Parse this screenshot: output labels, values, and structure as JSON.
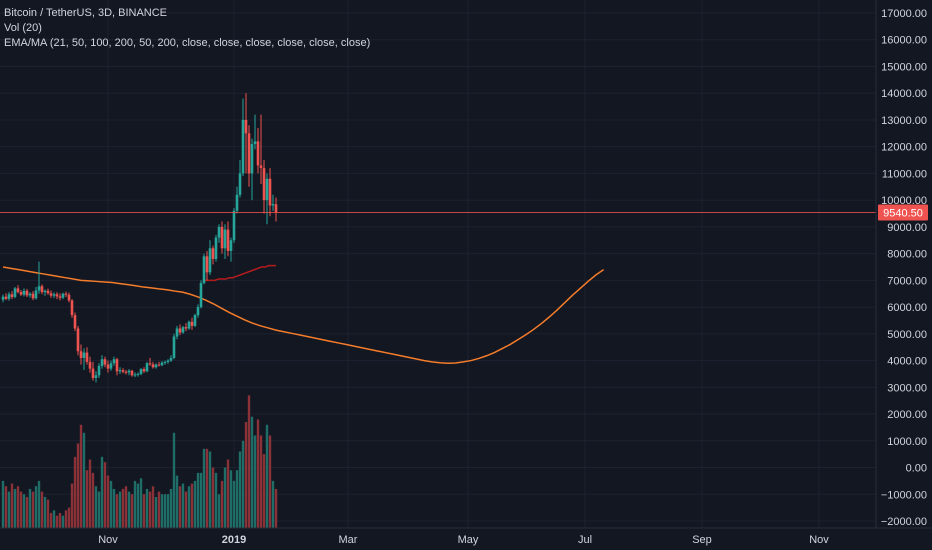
{
  "legend": {
    "line1": "Bitcoin / TetherUS, 3D, BINANCE",
    "line2": "Vol (20)",
    "line3": "EMA/MA (21, 50, 100, 200, 50, 200, close, close, close, close, close, close)"
  },
  "colors": {
    "background": "#131722",
    "grid": "#1e2230",
    "up": "#26a69a",
    "down": "#ef5350",
    "up_vol": "#1f6d67",
    "down_vol": "#8a3237",
    "ema_long": "#b71c1c",
    "ma_orange": "#f57c2a",
    "price_line": "#ef5350",
    "text": "#d1d4dc"
  },
  "chart_data": {
    "type": "candlestick",
    "y_ticks": [
      "17000.00",
      "16000.00",
      "15000.00",
      "14000.00",
      "13000.00",
      "12000.00",
      "11000.00",
      "10000.00",
      "9000.00",
      "8000.00",
      "7000.00",
      "6000.00",
      "5000.00",
      "4000.00",
      "3000.00",
      "2000.00",
      "1000.00",
      "0.00",
      "−1000.00",
      "−2000.00"
    ],
    "y_tick_values": [
      17000,
      16000,
      15000,
      14000,
      13000,
      12000,
      11000,
      10000,
      9000,
      8000,
      7000,
      6000,
      5000,
      4000,
      3000,
      2000,
      1000,
      0,
      -1000,
      -2000
    ],
    "ylim": [
      -2000,
      17000
    ],
    "x_ticks": [
      "Nov",
      "2019",
      "Mar",
      "May",
      "Jul",
      "Sep",
      "Nov"
    ],
    "x_tick_bold": [
      false,
      true,
      false,
      false,
      false,
      false,
      false
    ],
    "x_tick_candle_index": [
      35,
      77,
      115,
      155,
      194,
      233,
      272
    ],
    "last_price": "9540.50",
    "last_price_value": 9540.5,
    "candles": [
      {
        "o": 6280,
        "h": 6470,
        "l": 6180,
        "c": 6390
      },
      {
        "o": 6390,
        "h": 6520,
        "l": 6260,
        "c": 6310
      },
      {
        "o": 6310,
        "h": 6560,
        "l": 6240,
        "c": 6480
      },
      {
        "o": 6480,
        "h": 6600,
        "l": 6300,
        "c": 6380
      },
      {
        "o": 6380,
        "h": 6750,
        "l": 6330,
        "c": 6700
      },
      {
        "o": 6700,
        "h": 6820,
        "l": 6520,
        "c": 6560
      },
      {
        "o": 6560,
        "h": 6640,
        "l": 6420,
        "c": 6470
      },
      {
        "o": 6470,
        "h": 6700,
        "l": 6400,
        "c": 6610
      },
      {
        "o": 6610,
        "h": 6680,
        "l": 6380,
        "c": 6440
      },
      {
        "o": 6440,
        "h": 6560,
        "l": 6350,
        "c": 6500
      },
      {
        "o": 6500,
        "h": 6600,
        "l": 6260,
        "c": 6330
      },
      {
        "o": 6330,
        "h": 6750,
        "l": 6280,
        "c": 6620
      },
      {
        "o": 6620,
        "h": 7700,
        "l": 6500,
        "c": 6780
      },
      {
        "o": 6780,
        "h": 6850,
        "l": 6480,
        "c": 6560
      },
      {
        "o": 6560,
        "h": 6660,
        "l": 6420,
        "c": 6610
      },
      {
        "o": 6610,
        "h": 6690,
        "l": 6460,
        "c": 6520
      },
      {
        "o": 6520,
        "h": 6620,
        "l": 6350,
        "c": 6430
      },
      {
        "o": 6430,
        "h": 6550,
        "l": 6340,
        "c": 6480
      },
      {
        "o": 6480,
        "h": 6560,
        "l": 6300,
        "c": 6400
      },
      {
        "o": 6400,
        "h": 6520,
        "l": 6250,
        "c": 6350
      },
      {
        "o": 6350,
        "h": 6540,
        "l": 6300,
        "c": 6500
      },
      {
        "o": 6500,
        "h": 6580,
        "l": 6380,
        "c": 6460
      },
      {
        "o": 6460,
        "h": 6540,
        "l": 6180,
        "c": 6250
      },
      {
        "o": 6250,
        "h": 6300,
        "l": 5600,
        "c": 5700
      },
      {
        "o": 5700,
        "h": 5800,
        "l": 5100,
        "c": 5200
      },
      {
        "o": 5200,
        "h": 5300,
        "l": 4200,
        "c": 4350
      },
      {
        "o": 4350,
        "h": 4600,
        "l": 3850,
        "c": 4100
      },
      {
        "o": 4100,
        "h": 4450,
        "l": 3650,
        "c": 4300
      },
      {
        "o": 4300,
        "h": 4500,
        "l": 3850,
        "c": 3950
      },
      {
        "o": 3950,
        "h": 4150,
        "l": 3550,
        "c": 3700
      },
      {
        "o": 3700,
        "h": 3950,
        "l": 3250,
        "c": 3350
      },
      {
        "o": 3350,
        "h": 3600,
        "l": 3180,
        "c": 3450
      },
      {
        "o": 3450,
        "h": 3900,
        "l": 3350,
        "c": 3800
      },
      {
        "o": 3800,
        "h": 4200,
        "l": 3700,
        "c": 4050
      },
      {
        "o": 4050,
        "h": 4150,
        "l": 3750,
        "c": 3850
      },
      {
        "o": 3850,
        "h": 4000,
        "l": 3550,
        "c": 3700
      },
      {
        "o": 3700,
        "h": 4000,
        "l": 3620,
        "c": 3900
      },
      {
        "o": 3900,
        "h": 4150,
        "l": 3800,
        "c": 4050
      },
      {
        "o": 4050,
        "h": 4100,
        "l": 3450,
        "c": 3600
      },
      {
        "o": 3600,
        "h": 3750,
        "l": 3500,
        "c": 3640
      },
      {
        "o": 3640,
        "h": 3720,
        "l": 3520,
        "c": 3580
      },
      {
        "o": 3580,
        "h": 3650,
        "l": 3480,
        "c": 3560
      },
      {
        "o": 3560,
        "h": 3680,
        "l": 3450,
        "c": 3620
      },
      {
        "o": 3620,
        "h": 3650,
        "l": 3400,
        "c": 3450
      },
      {
        "o": 3450,
        "h": 3560,
        "l": 3380,
        "c": 3480
      },
      {
        "o": 3480,
        "h": 3560,
        "l": 3400,
        "c": 3500
      },
      {
        "o": 3500,
        "h": 3720,
        "l": 3450,
        "c": 3680
      },
      {
        "o": 3680,
        "h": 3750,
        "l": 3540,
        "c": 3600
      },
      {
        "o": 3600,
        "h": 3950,
        "l": 3560,
        "c": 3900
      },
      {
        "o": 3900,
        "h": 4100,
        "l": 3800,
        "c": 3860
      },
      {
        "o": 3860,
        "h": 3950,
        "l": 3700,
        "c": 3750
      },
      {
        "o": 3750,
        "h": 3900,
        "l": 3700,
        "c": 3850
      },
      {
        "o": 3850,
        "h": 3950,
        "l": 3780,
        "c": 3830
      },
      {
        "o": 3830,
        "h": 3980,
        "l": 3790,
        "c": 3920
      },
      {
        "o": 3920,
        "h": 4000,
        "l": 3850,
        "c": 3950
      },
      {
        "o": 3950,
        "h": 4050,
        "l": 3880,
        "c": 4000
      },
      {
        "o": 4000,
        "h": 4200,
        "l": 3950,
        "c": 4100
      },
      {
        "o": 4100,
        "h": 5000,
        "l": 4050,
        "c": 4900
      },
      {
        "o": 4900,
        "h": 5300,
        "l": 4800,
        "c": 5200
      },
      {
        "o": 5200,
        "h": 5350,
        "l": 4950,
        "c": 5050
      },
      {
        "o": 5050,
        "h": 5300,
        "l": 5000,
        "c": 5250
      },
      {
        "o": 5250,
        "h": 5400,
        "l": 5100,
        "c": 5200
      },
      {
        "o": 5200,
        "h": 5500,
        "l": 5150,
        "c": 5450
      },
      {
        "o": 5450,
        "h": 5600,
        "l": 5150,
        "c": 5300
      },
      {
        "o": 5300,
        "h": 5750,
        "l": 5250,
        "c": 5700
      },
      {
        "o": 5700,
        "h": 6100,
        "l": 5600,
        "c": 6000
      },
      {
        "o": 6000,
        "h": 7000,
        "l": 5950,
        "c": 6900
      },
      {
        "o": 6900,
        "h": 8000,
        "l": 6850,
        "c": 7900
      },
      {
        "o": 7900,
        "h": 8100,
        "l": 7000,
        "c": 7300
      },
      {
        "o": 7300,
        "h": 8500,
        "l": 7200,
        "c": 8200
      },
      {
        "o": 8200,
        "h": 8300,
        "l": 7600,
        "c": 7800
      },
      {
        "o": 7800,
        "h": 8700,
        "l": 7700,
        "c": 8600
      },
      {
        "o": 8600,
        "h": 9100,
        "l": 8400,
        "c": 9000
      },
      {
        "o": 9000,
        "h": 9200,
        "l": 8000,
        "c": 8200
      },
      {
        "o": 8200,
        "h": 9100,
        "l": 7800,
        "c": 8900
      },
      {
        "o": 8900,
        "h": 9200,
        "l": 7900,
        "c": 8100
      },
      {
        "o": 8100,
        "h": 8600,
        "l": 7700,
        "c": 8500
      },
      {
        "o": 8500,
        "h": 9700,
        "l": 8400,
        "c": 9600
      },
      {
        "o": 9600,
        "h": 10500,
        "l": 9500,
        "c": 10200
      },
      {
        "o": 10200,
        "h": 11500,
        "l": 10100,
        "c": 11000
      },
      {
        "o": 11000,
        "h": 13800,
        "l": 10900,
        "c": 13000
      },
      {
        "o": 13000,
        "h": 14000,
        "l": 11000,
        "c": 12500
      },
      {
        "o": 12500,
        "h": 12800,
        "l": 10500,
        "c": 11000
      },
      {
        "o": 11000,
        "h": 12300,
        "l": 10000,
        "c": 12100
      },
      {
        "o": 12100,
        "h": 13200,
        "l": 11900,
        "c": 12200
      },
      {
        "o": 12200,
        "h": 12700,
        "l": 11000,
        "c": 11300
      },
      {
        "o": 11300,
        "h": 13200,
        "l": 10600,
        "c": 11200
      },
      {
        "o": 11200,
        "h": 11500,
        "l": 9500,
        "c": 10000
      },
      {
        "o": 10000,
        "h": 11000,
        "l": 9100,
        "c": 10800
      },
      {
        "o": 10800,
        "h": 11200,
        "l": 9400,
        "c": 9800
      },
      {
        "o": 9800,
        "h": 10200,
        "l": 9600,
        "c": 9850
      },
      {
        "o": 9850,
        "h": 10100,
        "l": 9200,
        "c": 9540
      }
    ],
    "volumes": [
      -500,
      -700,
      -900,
      -600,
      -800,
      -700,
      -900,
      -1000,
      -1100,
      -800,
      -900,
      -700,
      -500,
      -900,
      -1100,
      -1200,
      -1700,
      -1600,
      -1800,
      -1700,
      -1800,
      -1600,
      -1500,
      -600,
      400,
      900,
      1600,
      1300,
      -100,
      300,
      -200,
      -700,
      -900,
      400,
      200,
      -300,
      -500,
      -800,
      -1000,
      -900,
      -800,
      -700,
      -900,
      -1000,
      -500,
      -600,
      -400,
      -1000,
      -800,
      -900,
      -700,
      -1100,
      -900,
      -1000,
      -1000,
      -1000,
      -800,
      1300,
      -300,
      -700,
      -600,
      -900,
      -700,
      -600,
      -500,
      -200,
      -200,
      700,
      700,
      600,
      0,
      -200,
      -1000,
      -500,
      0,
      300,
      -100,
      -500,
      -100,
      600,
      1000,
      1700,
      2700,
      1900,
      1200,
      1800,
      1200,
      500,
      1600,
      1200,
      -500,
      -800
    ],
    "ema_long": [
      7000,
      7000,
      7000,
      7000,
      7050,
      7050,
      7050,
      7100,
      7100,
      7150,
      7200,
      7250,
      7300,
      7350,
      7400,
      7450,
      7500,
      7500,
      7550,
      7550,
      7550
    ],
    "ema_long_start_index": 67,
    "ma_orange": [
      7500,
      7450,
      7400,
      7350,
      7300,
      7250,
      7200,
      7150,
      7100,
      7050,
      7000,
      6980,
      6960,
      6940,
      6920,
      6880,
      6840,
      6800,
      6750,
      6720,
      6680,
      6650,
      6600,
      6560,
      6480,
      6380,
      6260,
      6120,
      5960,
      5800,
      5660,
      5520,
      5400,
      5300,
      5220,
      5140,
      5080,
      5020,
      4960,
      4900,
      4840,
      4780,
      4720,
      4660,
      4600,
      4540,
      4480,
      4420,
      4360,
      4300,
      4240,
      4180,
      4120,
      4060,
      4000,
      3950,
      3920,
      3900,
      3910,
      3950,
      4000,
      4080,
      4180,
      4300,
      4450,
      4600,
      4780,
      4960,
      5160,
      5380,
      5620,
      5880,
      6160,
      6440,
      6700,
      6960,
      7200,
      7400
    ]
  }
}
